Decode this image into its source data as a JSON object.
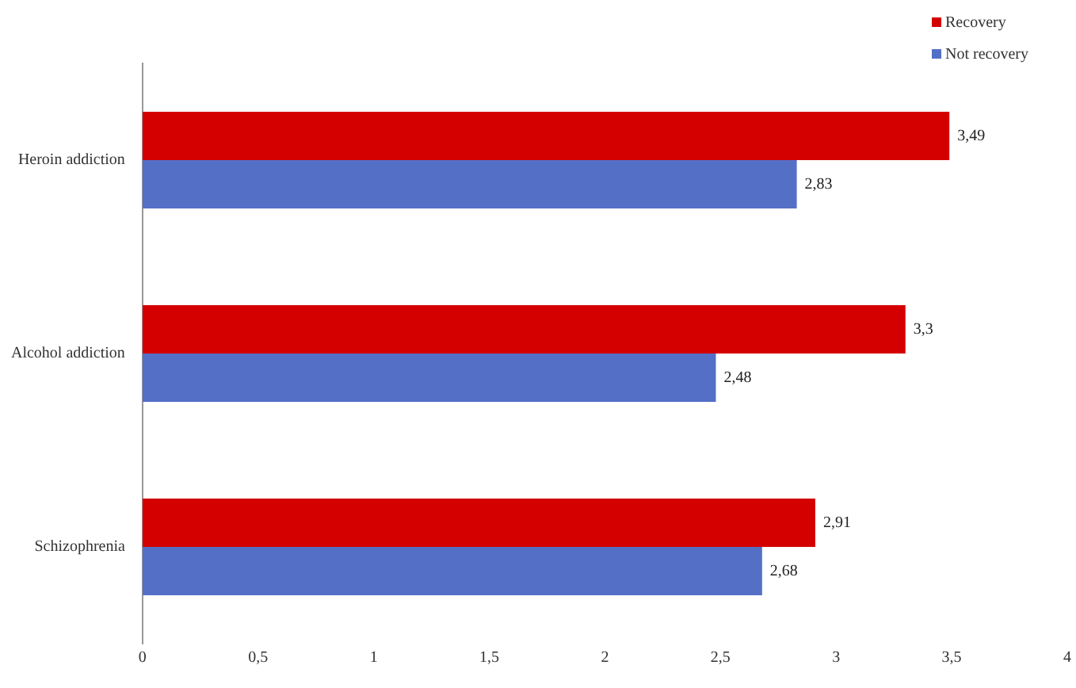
{
  "chart_data": {
    "type": "bar",
    "orientation": "horizontal",
    "categories": [
      "Heroin addiction",
      "Alcohol addiction",
      "Schizophrenia"
    ],
    "series": [
      {
        "name": "Recovery",
        "color": "#d40000",
        "values": [
          3.49,
          3.3,
          2.91
        ],
        "value_labels": [
          "3,49",
          "3,3",
          "2,91"
        ]
      },
      {
        "name": "Not recovery",
        "color": "#5470c6",
        "values": [
          2.83,
          2.48,
          2.68
        ],
        "value_labels": [
          "2,83",
          "2,48",
          "2,68"
        ]
      }
    ],
    "xlim": [
      0,
      4
    ],
    "xticks": [
      0,
      {
        "value": 0.5,
        "label": "0,5"
      },
      1,
      {
        "value": 1.5,
        "label": "1,5"
      },
      2,
      {
        "value": 2.5,
        "label": "2,5"
      },
      3,
      {
        "value": 3.5,
        "label": "3,5"
      },
      4
    ],
    "grid": false,
    "legend": "top right"
  }
}
